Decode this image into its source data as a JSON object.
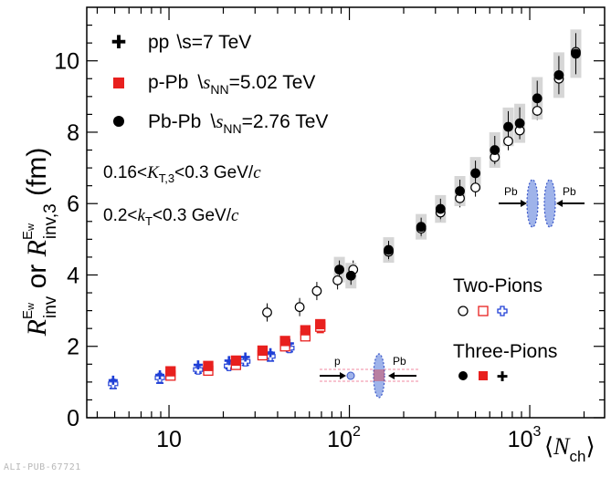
{
  "footer_id": "ALI-PUB-67721",
  "chart_data": {
    "type": "scatter",
    "x_scale": "log",
    "xlim": [
      3.5,
      2600
    ],
    "ylim": [
      0,
      11.5
    ],
    "x_ticks": [
      10,
      100,
      1000
    ],
    "x_tick_labels": [
      "10",
      "10",
      "10"
    ],
    "x_tick_exponents": [
      "",
      "2",
      "3"
    ],
    "y_ticks": [
      0,
      2,
      4,
      6,
      8,
      10
    ],
    "y_tick_labels": [
      "0",
      "2",
      "4",
      "6",
      "8",
      "10"
    ],
    "ylabel": {
      "main1": "R",
      "sup1": "E",
      "sup1b": "w",
      "sub1": "inv",
      "mid": " or ",
      "main2": "R",
      "sup2": "E",
      "sup2b": "w",
      "sub2": "inv,3",
      "units": " (fm)"
    },
    "xlabel": {
      "open": "⟨",
      "sym": "N",
      "sub": "ch",
      "close": "⟩"
    },
    "legend": [
      {
        "system": "pp",
        "energy_prefix": "s",
        "energy_sub": "",
        "energy": "=7 TeV",
        "color": "#1f3fd6",
        "marker": "plus"
      },
      {
        "system": "p-Pb",
        "energy_prefix": "s",
        "energy_sub": "NN",
        "energy": "=5.02 TeV",
        "color": "#e8201e",
        "marker": "square"
      },
      {
        "system": "Pb-Pb",
        "energy_prefix": "s",
        "energy_sub": "NN",
        "energy": "=2.76 TeV",
        "color": "#000000",
        "marker": "circle"
      }
    ],
    "annotations": [
      {
        "text_pre": "0.16<",
        "sym": "K",
        "sub": "T,3",
        "text_post": "<0.3 GeV/",
        "unit_sym": "c"
      },
      {
        "text_pre": "0.2<",
        "sym": "k",
        "sub": "T",
        "text_post": "<0.3 GeV/",
        "unit_sym": "c"
      }
    ],
    "marker_legend": {
      "two_pions": "Two-Pions",
      "three_pions": "Three-Pions"
    },
    "insets": {
      "pbpb": [
        "Pb",
        "Pb"
      ],
      "ppb": [
        "p",
        "Pb"
      ]
    },
    "series": [
      {
        "name": "pp two-pion",
        "system": "pp",
        "kind": "two",
        "color": "#1f3fd6",
        "points": [
          [
            4.9,
            0.95
          ],
          [
            8.9,
            1.12
          ],
          [
            14.5,
            1.35
          ],
          [
            21.5,
            1.45
          ],
          [
            26.5,
            1.58
          ],
          [
            36.5,
            1.72
          ],
          [
            46.5,
            1.95
          ]
        ]
      },
      {
        "name": "pp three-pion",
        "system": "pp",
        "kind": "three",
        "color": "#1f3fd6",
        "points": [
          [
            4.9,
            1.05
          ],
          [
            8.9,
            1.2
          ],
          [
            14.5,
            1.48
          ],
          [
            21.5,
            1.6
          ],
          [
            26.5,
            1.7
          ],
          [
            36.5,
            1.82
          ],
          [
            46.5,
            2.08
          ]
        ]
      },
      {
        "name": "p-Pb two-pion",
        "system": "ppb",
        "kind": "two",
        "color": "#e8201e",
        "points": [
          [
            10.2,
            1.18
          ],
          [
            16.5,
            1.32
          ],
          [
            23.5,
            1.48
          ],
          [
            33,
            1.75
          ],
          [
            44,
            2.0
          ],
          [
            57,
            2.28
          ],
          [
            69,
            2.55
          ]
        ]
      },
      {
        "name": "p-Pb three-pion",
        "system": "ppb",
        "kind": "three",
        "color": "#e8201e",
        "points": [
          [
            10.2,
            1.3
          ],
          [
            16.5,
            1.45
          ],
          [
            23.5,
            1.6
          ],
          [
            33,
            1.88
          ],
          [
            44,
            2.15
          ],
          [
            57,
            2.45
          ],
          [
            69,
            2.62
          ]
        ]
      },
      {
        "name": "Pb-Pb two-pion",
        "system": "pbpb",
        "kind": "two",
        "color": "#000000",
        "points": [
          [
            35,
            2.95
          ],
          [
            53,
            3.1
          ],
          [
            66,
            3.55
          ],
          [
            86,
            3.85
          ],
          [
            105,
            4.15
          ],
          [
            165,
            4.65
          ],
          [
            250,
            5.3
          ],
          [
            320,
            5.75
          ],
          [
            410,
            6.15
          ],
          [
            500,
            6.45
          ],
          [
            640,
            7.3
          ],
          [
            760,
            7.75
          ],
          [
            880,
            8.05
          ],
          [
            1100,
            8.6
          ],
          [
            1450,
            9.5
          ],
          [
            1800,
            10.25
          ]
        ]
      },
      {
        "name": "Pb-Pb three-pion",
        "system": "pbpb",
        "kind": "three",
        "color": "#000000",
        "points": [
          [
            88,
            4.15
          ],
          [
            102,
            3.98
          ],
          [
            165,
            4.7
          ],
          [
            250,
            5.35
          ],
          [
            320,
            5.85
          ],
          [
            410,
            6.35
          ],
          [
            500,
            6.85
          ],
          [
            640,
            7.5
          ],
          [
            760,
            8.15
          ],
          [
            880,
            8.25
          ],
          [
            1100,
            8.95
          ],
          [
            1450,
            9.6
          ],
          [
            1800,
            10.2
          ]
        ]
      }
    ]
  }
}
